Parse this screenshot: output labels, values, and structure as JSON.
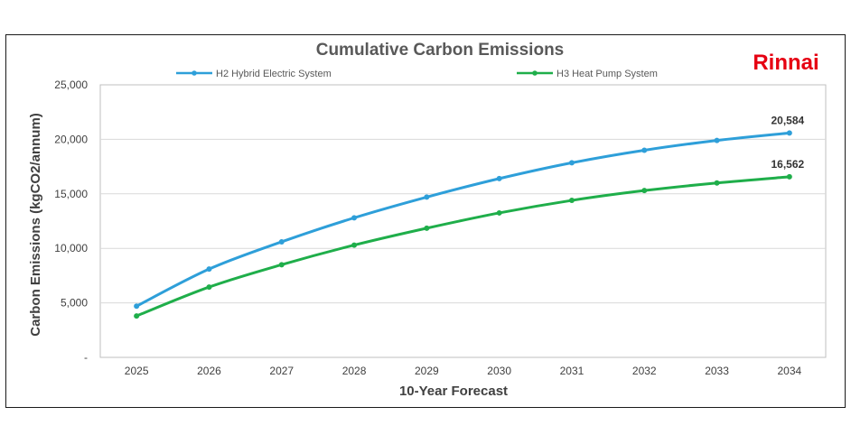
{
  "logo": "Rinnai",
  "chart_data": {
    "type": "line",
    "title": "Cumulative Carbon Emissions",
    "xlabel": "10-Year Forecast",
    "ylabel": "Carbon Emissions (kgCO2/annum)",
    "categories": [
      "2025",
      "2026",
      "2027",
      "2028",
      "2029",
      "2030",
      "2031",
      "2032",
      "2033",
      "2034"
    ],
    "ylim": [
      0,
      25000
    ],
    "yticks": [
      0,
      5000,
      10000,
      15000,
      20000,
      25000
    ],
    "ytick_labels": [
      "-",
      "5,000",
      "10,000",
      "15,000",
      "20,000",
      "25,000"
    ],
    "grid": true,
    "legend_position": "top",
    "series": [
      {
        "name": "H2 Hybrid Electric System",
        "color": "#2e9fd9",
        "values": [
          4700,
          8100,
          10600,
          12800,
          14700,
          16400,
          17850,
          19000,
          19900,
          20584
        ],
        "end_label": "20,584"
      },
      {
        "name": "H3 Heat Pump System",
        "color": "#1fae4a",
        "values": [
          3800,
          6450,
          8500,
          10300,
          11850,
          13250,
          14400,
          15300,
          16000,
          16562
        ],
        "end_label": "16,562"
      }
    ]
  }
}
